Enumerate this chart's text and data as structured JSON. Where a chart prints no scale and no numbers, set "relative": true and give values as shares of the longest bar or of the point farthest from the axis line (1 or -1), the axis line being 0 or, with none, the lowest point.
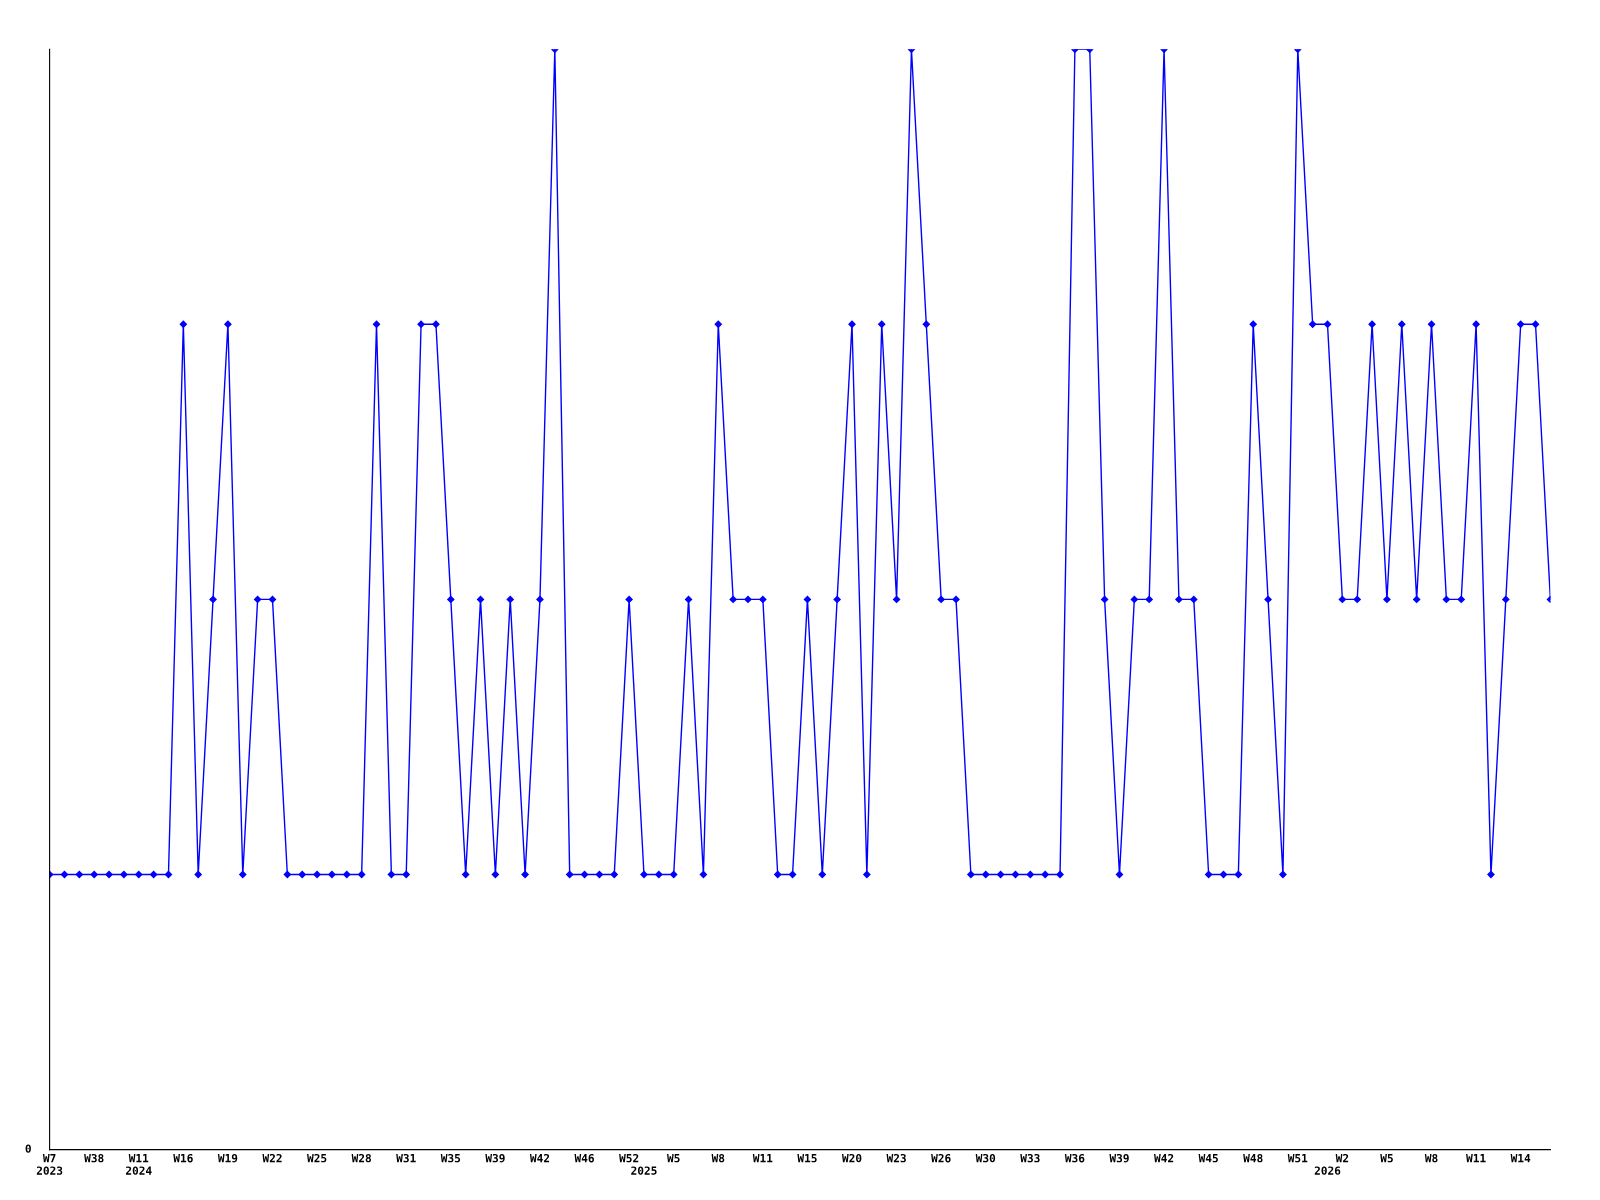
{
  "chart_data": {
    "type": "line",
    "relative": true,
    "color": "#0000ff",
    "marker": "diamond",
    "line_style": "solid",
    "grid": false,
    "categories": [
      "W7\n2023",
      null,
      null,
      "W38",
      null,
      null,
      "W11\n2024",
      null,
      null,
      "W16",
      null,
      null,
      "W19",
      null,
      null,
      "W22",
      null,
      null,
      "W25",
      null,
      null,
      "W28",
      null,
      null,
      "W31",
      null,
      null,
      "W35",
      null,
      null,
      "W39",
      null,
      null,
      "W42",
      null,
      null,
      "W46",
      null,
      null,
      "W52",
      "\n2025",
      null,
      "W5",
      null,
      null,
      "W8",
      null,
      null,
      "W11",
      null,
      null,
      "W15",
      null,
      null,
      "W20",
      null,
      null,
      "W23",
      null,
      null,
      "W26",
      null,
      null,
      "W30",
      null,
      null,
      "W33",
      null,
      null,
      "W36",
      null,
      null,
      "W39",
      null,
      null,
      "W42",
      null,
      null,
      "W45",
      null,
      null,
      "W48",
      null,
      null,
      "W51",
      null,
      "\n2026",
      "W2",
      null,
      null,
      "W5",
      null,
      null,
      "W8",
      null,
      null,
      "W11",
      null,
      null,
      "W14",
      null,
      null
    ],
    "values": [
      0.25,
      0.25,
      0.25,
      0.25,
      0.25,
      0.25,
      0.25,
      0.25,
      0.25,
      0.75,
      0.25,
      0.5,
      0.75,
      0.25,
      0.5,
      0.5,
      0.25,
      0.25,
      0.25,
      0.25,
      0.25,
      0.25,
      0.75,
      0.25,
      0.25,
      0.75,
      0.75,
      0.5,
      0.25,
      0.5,
      0.25,
      0.5,
      0.25,
      0.5,
      1,
      0.25,
      0.25,
      0.25,
      0.25,
      0.5,
      0.25,
      0.25,
      0.25,
      0.5,
      0.25,
      0.75,
      0.5,
      0.5,
      0.5,
      0.25,
      0.25,
      0.5,
      0.25,
      0.5,
      0.75,
      0.25,
      0.75,
      0.5,
      1,
      0.75,
      0.5,
      0.5,
      0.25,
      0.25,
      0.25,
      0.25,
      0.25,
      0.25,
      0.25,
      1,
      1,
      0.5,
      0.25,
      0.5,
      0.5,
      1,
      0.5,
      0.5,
      0.25,
      0.25,
      0.25,
      0.75,
      0.5,
      0.25,
      1,
      0.75,
      0.75,
      0.5,
      0.5,
      0.75,
      0.5,
      0.75,
      0.5,
      0.75,
      0.5,
      0.5,
      0.75,
      0.25,
      0.5,
      0.75,
      0.75,
      0.5
    ],
    "annotations": [
      "0"
    ]
  }
}
